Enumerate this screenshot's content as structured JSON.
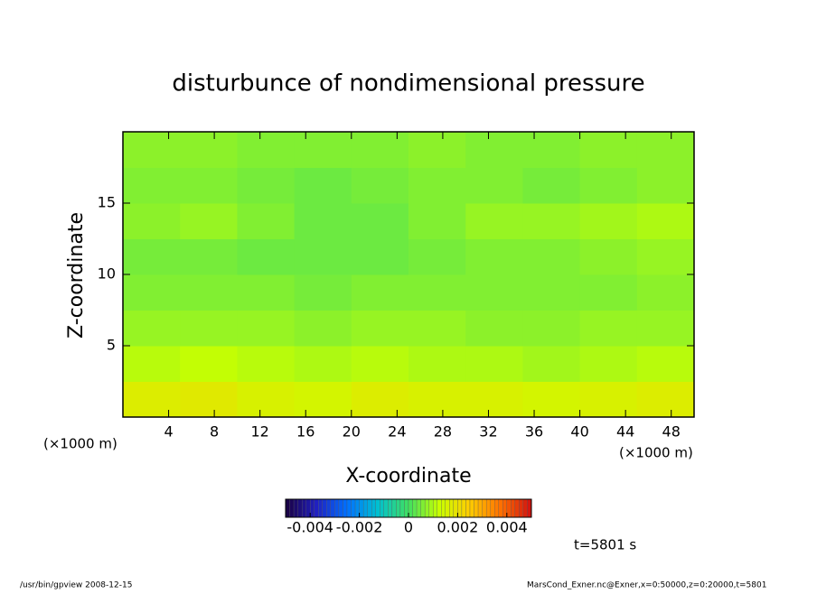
{
  "chart_data": {
    "type": "heatmap",
    "title": "disturbunce of nondimensional pressure",
    "xlabel": "X-coordinate",
    "ylabel": "Z-coordinate",
    "xunit": "(×1000 m)",
    "xlim": [
      0,
      50
    ],
    "ylim": [
      0,
      20
    ],
    "xticks": [
      4,
      8,
      12,
      16,
      20,
      24,
      28,
      32,
      36,
      40,
      44,
      48
    ],
    "yticks": [
      5,
      10,
      15
    ],
    "grid_x": [
      2.5,
      7.5,
      12.5,
      17.5,
      22.5,
      27.5,
      32.5,
      37.5,
      42.5,
      47.5
    ],
    "grid_y": [
      1.25,
      3.75,
      6.25,
      8.75,
      11.25,
      13.75,
      16.25,
      18.75
    ],
    "z": [
      [
        0.0017,
        0.0018,
        0.0016,
        0.0015,
        0.0017,
        0.0016,
        0.0016,
        0.0015,
        0.0016,
        0.0017
      ],
      [
        0.0011,
        0.0012,
        0.0011,
        0.001,
        0.0011,
        0.001,
        0.001,
        0.0009,
        0.001,
        0.0011
      ],
      [
        0.0008,
        0.0008,
        0.0008,
        0.0007,
        0.0008,
        0.0008,
        0.0007,
        0.0007,
        0.0008,
        0.0008
      ],
      [
        0.0006,
        0.0006,
        0.0006,
        0.0005,
        0.0006,
        0.0006,
        0.0006,
        0.0006,
        0.0006,
        0.0007
      ],
      [
        0.0005,
        0.0005,
        0.0004,
        0.0004,
        0.0004,
        0.0005,
        0.0006,
        0.0006,
        0.0007,
        0.0008
      ],
      [
        0.0007,
        0.0008,
        0.0006,
        0.0004,
        0.0004,
        0.0006,
        0.0008,
        0.0008,
        0.0009,
        0.001
      ],
      [
        0.0006,
        0.0006,
        0.0005,
        0.0004,
        0.0005,
        0.0006,
        0.0006,
        0.0005,
        0.0006,
        0.0007
      ],
      [
        0.0007,
        0.0007,
        0.0006,
        0.0006,
        0.0006,
        0.0007,
        0.0006,
        0.0006,
        0.0007,
        0.0007
      ]
    ],
    "clim": [
      -0.005,
      0.005
    ],
    "cticks": [
      -0.004,
      -0.002,
      0,
      0.002,
      0.004
    ],
    "colormap": [
      "#1a0040",
      "#2020c0",
      "#0070ff",
      "#00c0d0",
      "#40e060",
      "#c8ff00",
      "#ffcc00",
      "#ff7000",
      "#d01010"
    ],
    "time_label": "t=5801 s",
    "footer_left": "/usr/bin/gpview   2008-12-15",
    "footer_right": "MarsCond_Exner.nc@Exner,x=0:50000,z=0:20000,t=5801"
  }
}
